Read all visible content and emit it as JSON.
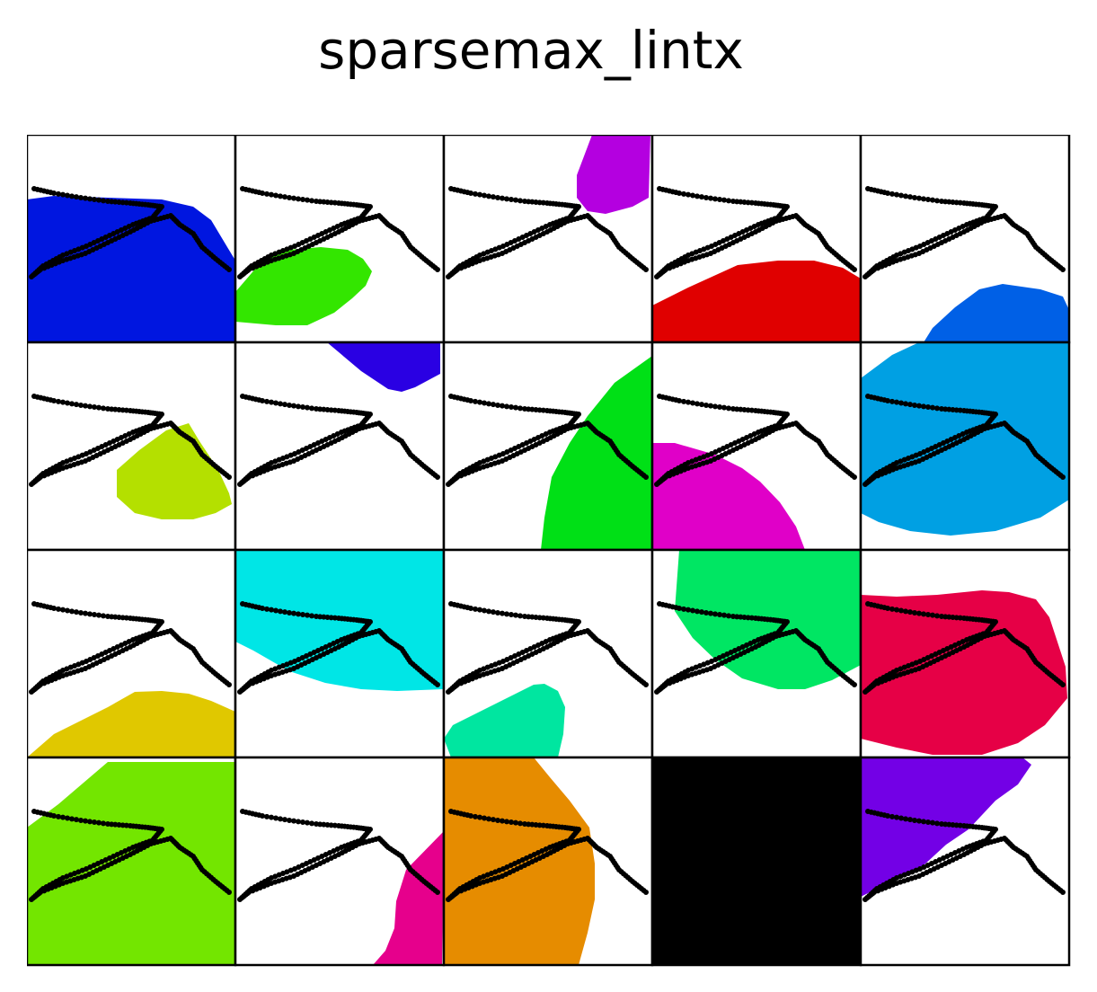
{
  "title": "sparsemax_lintx",
  "chart_data": {
    "type": "grid",
    "title": "sparsemax_lintx",
    "rows": 4,
    "cols": 5,
    "axes_visible": false,
    "panels": [
      {
        "color": "#0016e0"
      },
      {
        "color": "#33e600"
      },
      {
        "color": "#b400e0"
      },
      {
        "color": "#e00000"
      },
      {
        "color": "#0060e6"
      },
      {
        "color": "#b4e000"
      },
      {
        "color": "#2a00e3"
      },
      {
        "color": "#00e016"
      },
      {
        "color": "#e000c8"
      },
      {
        "color": "#00a0e3"
      },
      {
        "color": "#e0c800"
      },
      {
        "color": "#00e6e6"
      },
      {
        "color": "#00e6a0"
      },
      {
        "color": "#00e663"
      },
      {
        "color": "#e60046"
      },
      {
        "color": "#73e600"
      },
      {
        "color": "#e6008c"
      },
      {
        "color": "#e68c00"
      },
      {
        "color": "#000000"
      },
      {
        "color": "#7300e6"
      }
    ]
  }
}
